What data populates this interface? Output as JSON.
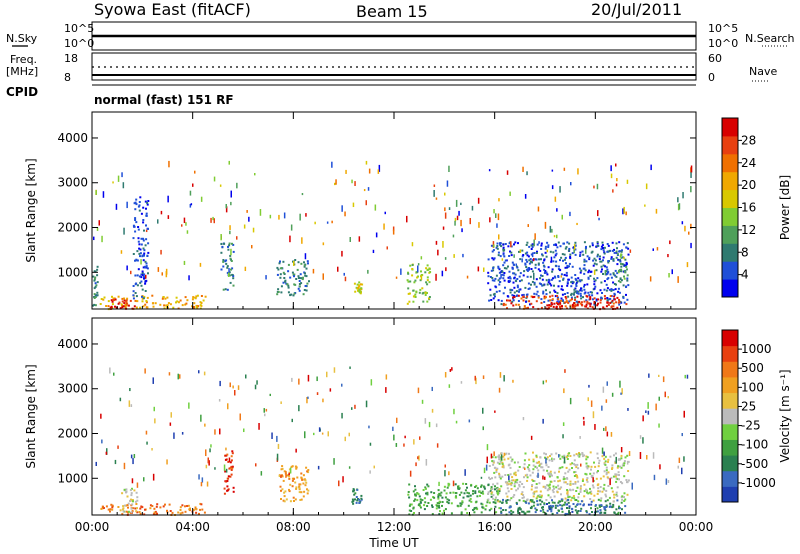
{
  "header": {
    "title": "Syowa East (fitACF)",
    "beam": "Beam 15",
    "date": "20/Jul/2011"
  },
  "status_panels": {
    "nsky_label": "N.Sky",
    "nsky_ticks": [
      "10^5",
      "10^0"
    ],
    "nsearch_label": "N.Search",
    "nsearch_ticks": [
      "10^5",
      "10^0"
    ],
    "freq_label": "Freq.",
    "freq_unit": "[MHz]",
    "freq_ticks": [
      "18",
      "8"
    ],
    "nave_label": "Nave",
    "nave_ticks": [
      "60",
      "0"
    ],
    "cpid_label": "CPID",
    "cpid_text": "normal (fast) 151 RF"
  },
  "chart_data": [
    {
      "type": "heatmap",
      "name": "Power",
      "xlabel": "Time UT",
      "ylabel": "Slant Range [km]",
      "x_ticks": [
        "00:00",
        "04:00",
        "08:00",
        "12:00",
        "16:00",
        "20:00",
        "00:00"
      ],
      "xlim_hours": [
        0,
        24
      ],
      "y_ticks": [
        1000,
        2000,
        3000,
        4000
      ],
      "ylim": [
        180,
        4580
      ],
      "colorbar_label": "Power [dB]",
      "colorbar_ticks": [
        "28",
        "24",
        "20",
        "16",
        "12",
        "8",
        "4"
      ],
      "colorbar_colors": [
        "#0000ee",
        "#1f4fd8",
        "#2f7a70",
        "#4fa05a",
        "#80cc33",
        "#d8c800",
        "#f0a800",
        "#f07000",
        "#e84010",
        "#d80000"
      ],
      "regions": [
        {
          "t0": 0.0,
          "t1": 0.2,
          "r0": 200,
          "r1": 1200,
          "level": 2
        },
        {
          "t0": 0.3,
          "t1": 4.5,
          "r0": 200,
          "r1": 500,
          "level": 6
        },
        {
          "t0": 0.7,
          "t1": 1.7,
          "r0": 200,
          "r1": 420,
          "level": 9
        },
        {
          "t0": 1.6,
          "t1": 2.2,
          "r0": 400,
          "r1": 2700,
          "level": 1
        },
        {
          "t0": 5.1,
          "t1": 5.6,
          "r0": 600,
          "r1": 1700,
          "level": 2
        },
        {
          "t0": 7.3,
          "t1": 8.6,
          "r0": 500,
          "r1": 1300,
          "level": 2
        },
        {
          "t0": 10.4,
          "t1": 10.7,
          "r0": 550,
          "r1": 800,
          "level": 5
        },
        {
          "t0": 12.5,
          "t1": 13.4,
          "r0": 300,
          "r1": 1200,
          "level": 4
        },
        {
          "t0": 15.7,
          "t1": 21.3,
          "r0": 300,
          "r1": 1700,
          "level": 1
        },
        {
          "t0": 16.2,
          "t1": 21.2,
          "r0": 200,
          "r1": 500,
          "level": 8
        },
        {
          "t0": 18.0,
          "t1": 20.6,
          "r0": 200,
          "r1": 360,
          "level": 9
        },
        {
          "t0": 20.8,
          "t1": 21.3,
          "r0": 800,
          "r1": 1500,
          "level": 3
        }
      ]
    },
    {
      "type": "heatmap",
      "name": "Velocity",
      "xlabel": "Time UT",
      "ylabel": "Slant Range [km]",
      "x_ticks": [
        "00:00",
        "04:00",
        "08:00",
        "12:00",
        "16:00",
        "20:00",
        "00:00"
      ],
      "xlim_hours": [
        0,
        24
      ],
      "y_ticks": [
        1000,
        2000,
        3000,
        4000
      ],
      "ylim": [
        180,
        4580
      ],
      "colorbar_label": "Velocity [m s⁻¹]",
      "colorbar_ticks": [
        "1000",
        "500",
        "100",
        "25",
        "-25",
        "-100",
        "-500",
        "-1000"
      ],
      "colorbar_colors": [
        "#1f3fb0",
        "#3a6ac0",
        "#2a8050",
        "#3fa040",
        "#70d040",
        "#bbbbbb",
        "#e8c040",
        "#f0a020",
        "#f07818",
        "#e84010",
        "#d80000"
      ],
      "regions": [
        {
          "t0": 0.2,
          "t1": 4.5,
          "r0": 200,
          "r1": 450,
          "level": 8
        },
        {
          "t0": 1.0,
          "t1": 1.8,
          "r0": 250,
          "r1": 800,
          "level": 5
        },
        {
          "t0": 5.2,
          "t1": 5.6,
          "r0": 600,
          "r1": 1700,
          "level": 9
        },
        {
          "t0": 7.4,
          "t1": 8.6,
          "r0": 500,
          "r1": 1300,
          "level": 7
        },
        {
          "t0": 10.3,
          "t1": 10.7,
          "r0": 450,
          "r1": 800,
          "level": 2
        },
        {
          "t0": 12.5,
          "t1": 16.2,
          "r0": 200,
          "r1": 900,
          "level": 3
        },
        {
          "t0": 15.7,
          "t1": 21.3,
          "r0": 500,
          "r1": 1600,
          "level": 5
        },
        {
          "t0": 16.2,
          "t1": 21.2,
          "r0": 200,
          "r1": 550,
          "level": 2
        },
        {
          "t0": 18.0,
          "t1": 20.6,
          "r0": 200,
          "r1": 450,
          "level": 1
        }
      ]
    }
  ]
}
